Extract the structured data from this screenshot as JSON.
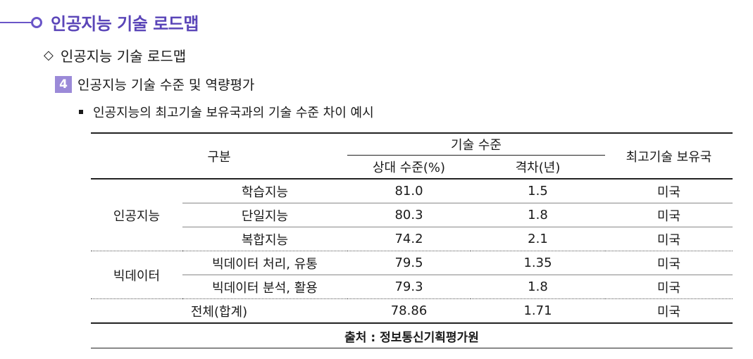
{
  "title": "인공지능 기술 로드맵",
  "section": "인공지능 기술 로드맵",
  "section_symbol": "◇",
  "subsection": {
    "number": "4",
    "label": "인공지능 기술 수준 및 역량평가"
  },
  "bullet": "인공지능의 최고기술 보유국과의 기술 수준 차이 예시",
  "table": {
    "headers": {
      "category": "구분",
      "tech_level": "기술 수준",
      "relative": "상대 수준(%)",
      "gap": "격차(년)",
      "top_country": "최고기술 보유국"
    },
    "groups": [
      {
        "name": "인공지능",
        "rows": [
          {
            "sub": "학습지능",
            "relative": "81.0",
            "gap": "1.5",
            "country": "미국"
          },
          {
            "sub": "단일지능",
            "relative": "80.3",
            "gap": "1.8",
            "country": "미국"
          },
          {
            "sub": "복합지능",
            "relative": "74.2",
            "gap": "2.1",
            "country": "미국"
          }
        ]
      },
      {
        "name": "빅데이터",
        "rows": [
          {
            "sub": "빅데이터 처리, 유통",
            "relative": "79.5",
            "gap": "1.35",
            "country": "미국"
          },
          {
            "sub": "빅데이터 분석, 활용",
            "relative": "79.3",
            "gap": "1.8",
            "country": "미국"
          }
        ]
      }
    ],
    "total": {
      "label": "전체(합계)",
      "relative": "78.86",
      "gap": "1.71",
      "country": "미국"
    },
    "source": "출처 : 정보통신기획평가원"
  }
}
